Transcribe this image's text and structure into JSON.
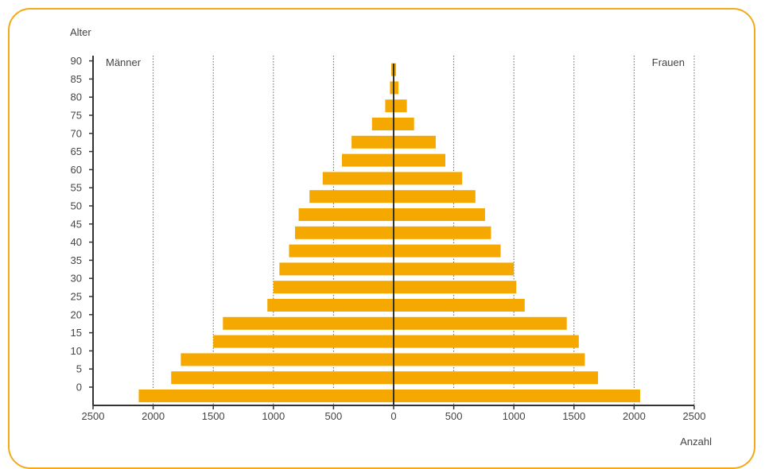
{
  "colors": {
    "frame": "#f2aa1a",
    "bar": "#f5a800",
    "axis": "#333333",
    "grid": "#666666",
    "text": "#444444"
  },
  "chart_data": {
    "type": "bar",
    "orientation": "horizontal",
    "layout": "population-pyramid",
    "ylabel": "Alter",
    "xlabel": "Anzahl",
    "left_label": "Männer",
    "right_label": "Frauen",
    "xlim": [
      -2500,
      2500
    ],
    "x_ticks": [
      -2500,
      -2000,
      -1500,
      -1000,
      -500,
      0,
      500,
      1000,
      1500,
      2000,
      2500
    ],
    "x_tick_labels": [
      "2500",
      "2000",
      "1500",
      "1000",
      "500",
      "0",
      "500",
      "1000",
      "1500",
      "2000",
      "2500"
    ],
    "y_ticks": [
      0,
      5,
      10,
      15,
      20,
      25,
      30,
      35,
      40,
      45,
      50,
      55,
      60,
      65,
      70,
      75,
      80,
      85,
      90
    ],
    "y_tick_labels": [
      "0",
      "5",
      "10",
      "15",
      "20",
      "25",
      "30",
      "35",
      "40",
      "45",
      "50",
      "55",
      "60",
      "65",
      "70",
      "75",
      "80",
      "85",
      "90"
    ],
    "grid": {
      "vertical": "dotted",
      "horizontal": false
    },
    "categories": [
      "0",
      "5",
      "10",
      "15",
      "20",
      "25",
      "30",
      "35",
      "40",
      "45",
      "50",
      "55",
      "60",
      "65",
      "70",
      "75",
      "80",
      "85",
      "90"
    ],
    "series": [
      {
        "name": "Männer",
        "values": [
          2120,
          1850,
          1770,
          1500,
          1420,
          1050,
          1000,
          950,
          870,
          820,
          790,
          700,
          590,
          430,
          350,
          180,
          70,
          30,
          20
        ]
      },
      {
        "name": "Frauen",
        "values": [
          2050,
          1700,
          1590,
          1540,
          1440,
          1090,
          1020,
          1000,
          890,
          810,
          760,
          680,
          570,
          430,
          350,
          170,
          110,
          40,
          20
        ]
      }
    ]
  }
}
